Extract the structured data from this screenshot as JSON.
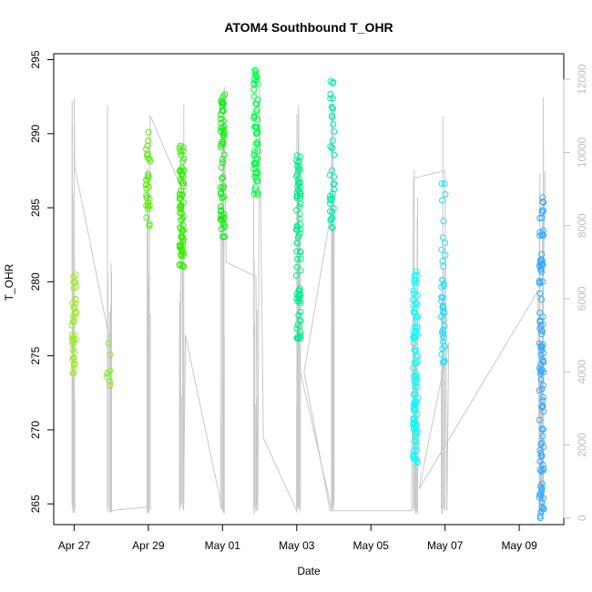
{
  "chart_data": {
    "type": "scatter",
    "title": "ATOM4 Southbound T_OHR",
    "xlabel": "Date",
    "ylabel": "T_OHR",
    "x_ticks": [
      "Apr 27",
      "Apr 29",
      "May 01",
      "May 03",
      "May 05",
      "May 07",
      "May 09"
    ],
    "x_tick_days": [
      0,
      2,
      4,
      6,
      8,
      10,
      12
    ],
    "xlim_days": [
      -0.55,
      13.2
    ],
    "ylim": [
      263.6,
      295.4
    ],
    "y_ticks": [
      265,
      270,
      275,
      280,
      285,
      290,
      295
    ],
    "y2lim": [
      -180,
      12700
    ],
    "y2_ticks": [
      0,
      2000,
      4000,
      6000,
      8000,
      10000,
      12000
    ],
    "colors": {
      "altitude_line": "#c8c8c8",
      "secondary_axis": "#bebebe",
      "points_green": [
        "#99ee22",
        "#33ff00",
        "#00ff44",
        "#00ffaa",
        "#00ffff",
        "#22ccff"
      ]
    },
    "clusters": [
      {
        "day": 0.0,
        "n": 40,
        "ymin": 273.8,
        "ymax": 280.5,
        "color": "#99ee22"
      },
      {
        "day": 0.95,
        "n": 8,
        "ymin": 272.8,
        "ymax": 276.0,
        "color": "#88ee22"
      },
      {
        "day": 2.0,
        "n": 30,
        "ymin": 283.3,
        "ymax": 290.5,
        "color": "#55ee00"
      },
      {
        "day": 2.9,
        "n": 70,
        "ymin": 281.0,
        "ymax": 289.2,
        "color": "#33ee00"
      },
      {
        "day": 4.0,
        "n": 60,
        "ymin": 283.0,
        "ymax": 292.8,
        "color": "#11ee11"
      },
      {
        "day": 4.9,
        "n": 60,
        "ymin": 285.8,
        "ymax": 294.4,
        "color": "#00ff44"
      },
      {
        "day": 6.05,
        "n": 80,
        "ymin": 276.0,
        "ymax": 289.0,
        "color": "#00ee88"
      },
      {
        "day": 6.95,
        "n": 40,
        "ymin": 283.6,
        "ymax": 294.2,
        "color": "#00eeaa"
      },
      {
        "day": 9.2,
        "n": 90,
        "ymin": 267.8,
        "ymax": 281.0,
        "color": "#00ffff"
      },
      {
        "day": 9.95,
        "n": 40,
        "ymin": 272.8,
        "ymax": 286.8,
        "color": "#22ddff"
      },
      {
        "day": 12.6,
        "n": 110,
        "ymin": 264.0,
        "ymax": 286.0,
        "color": "#33aaff"
      }
    ],
    "altitude_track": [
      [
        0.0,
        200
      ],
      [
        0.0,
        11500
      ],
      [
        0.02,
        9600
      ],
      [
        0.95,
        4900
      ],
      [
        0.98,
        200
      ],
      [
        2.0,
        300
      ],
      [
        2.05,
        11000
      ],
      [
        2.9,
        9000
      ],
      [
        2.95,
        200
      ],
      [
        3.0,
        5000
      ],
      [
        4.0,
        200
      ],
      [
        4.05,
        11800
      ],
      [
        4.1,
        7000
      ],
      [
        4.9,
        6600
      ],
      [
        4.95,
        200
      ],
      [
        5.0,
        11800
      ],
      [
        5.1,
        2200
      ],
      [
        6.0,
        200
      ],
      [
        6.05,
        11300
      ],
      [
        6.1,
        4000
      ],
      [
        6.95,
        200
      ],
      [
        7.0,
        8800
      ],
      [
        6.2,
        4000
      ],
      [
        6.9,
        200
      ],
      [
        9.1,
        200
      ],
      [
        9.15,
        9300
      ],
      [
        10.0,
        9500
      ],
      [
        10.05,
        200
      ],
      [
        10.1,
        4800
      ],
      [
        9.3,
        800
      ],
      [
        12.5,
        6200
      ],
      [
        12.55,
        200
      ],
      [
        12.7,
        9500
      ]
    ]
  }
}
